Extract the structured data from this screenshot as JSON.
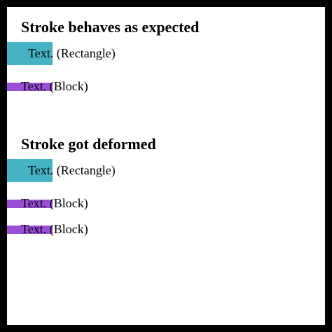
{
  "colors": {
    "rectangle": "#45b3c3",
    "block": "#9b4fd6",
    "border": "#000000",
    "background": "#ffffff"
  },
  "section1": {
    "title": "Stroke behaves as expected",
    "rectangle_text": "Text. (Rectangle)",
    "block_text": "Text. (Block)"
  },
  "section2": {
    "title": "Stroke got deformed",
    "rectangle_text": "Text. (Rectangle)",
    "block1_text": "Text. (Block)",
    "block2_text": "Text. (Block)"
  }
}
